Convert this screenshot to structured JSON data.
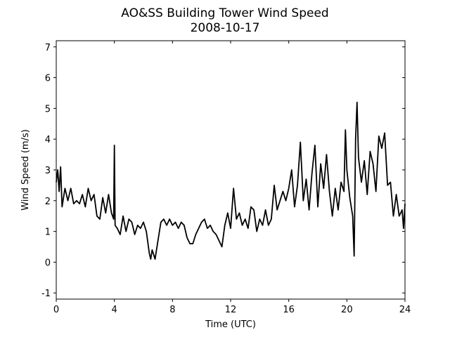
{
  "chart_data": {
    "type": "line",
    "title": "AO&SS Building Tower Wind Speed",
    "subtitle": "2008-10-17",
    "xlabel": "Time (UTC)",
    "ylabel": "Wind Speed (m/s)",
    "xlim": [
      0,
      24
    ],
    "ylim": [
      -1.2,
      7.2
    ],
    "xticks": [
      0,
      4,
      8,
      12,
      16,
      20,
      24
    ],
    "yticks": [
      -1,
      0,
      1,
      2,
      3,
      4,
      5,
      6,
      7
    ],
    "series": [
      {
        "color": "#000000",
        "x": [
          0,
          0.1,
          0.2,
          0.3,
          0.4,
          0.6,
          0.8,
          1.0,
          1.2,
          1.4,
          1.6,
          1.8,
          2.0,
          2.2,
          2.4,
          2.6,
          2.8,
          3.0,
          3.2,
          3.4,
          3.6,
          3.8,
          3.95,
          4.0,
          4.05,
          4.2,
          4.4,
          4.6,
          4.8,
          5.0,
          5.2,
          5.4,
          5.6,
          5.8,
          6.0,
          6.2,
          6.4,
          6.5,
          6.6,
          6.8,
          7.0,
          7.2,
          7.4,
          7.6,
          7.8,
          8.0,
          8.2,
          8.4,
          8.6,
          8.8,
          9.0,
          9.2,
          9.4,
          9.6,
          9.8,
          10.0,
          10.2,
          10.4,
          10.6,
          10.8,
          11.0,
          11.2,
          11.4,
          11.6,
          11.8,
          12.0,
          12.2,
          12.4,
          12.6,
          12.8,
          13.0,
          13.2,
          13.4,
          13.6,
          13.8,
          14.0,
          14.2,
          14.4,
          14.6,
          14.8,
          15.0,
          15.2,
          15.4,
          15.6,
          15.8,
          16.0,
          16.2,
          16.4,
          16.6,
          16.8,
          17.0,
          17.2,
          17.4,
          17.6,
          17.8,
          18.0,
          18.2,
          18.4,
          18.6,
          18.8,
          19.0,
          19.2,
          19.4,
          19.6,
          19.8,
          19.9,
          20.0,
          20.2,
          20.4,
          20.5,
          20.6,
          20.7,
          20.8,
          21.0,
          21.2,
          21.4,
          21.6,
          21.8,
          22.0,
          22.2,
          22.4,
          22.6,
          22.8,
          23.0,
          23.2,
          23.4,
          23.6,
          23.8,
          23.9,
          24.0
        ],
        "values": [
          2.6,
          3.0,
          2.3,
          3.1,
          1.8,
          2.4,
          2.0,
          2.4,
          1.9,
          2.0,
          1.9,
          2.2,
          1.8,
          2.4,
          2.0,
          2.2,
          1.5,
          1.4,
          2.1,
          1.6,
          2.2,
          1.6,
          1.4,
          3.8,
          1.2,
          1.1,
          0.9,
          1.5,
          1.0,
          1.4,
          1.3,
          0.9,
          1.2,
          1.1,
          1.3,
          1.0,
          0.3,
          0.1,
          0.4,
          0.1,
          0.7,
          1.3,
          1.4,
          1.2,
          1.4,
          1.2,
          1.3,
          1.1,
          1.3,
          1.2,
          0.8,
          0.6,
          0.6,
          0.9,
          1.1,
          1.3,
          1.4,
          1.1,
          1.2,
          1.0,
          0.9,
          0.7,
          0.5,
          1.2,
          1.6,
          1.1,
          2.4,
          1.4,
          1.6,
          1.2,
          1.4,
          1.1,
          1.8,
          1.7,
          1.0,
          1.4,
          1.2,
          1.7,
          1.2,
          1.4,
          2.5,
          1.7,
          2.0,
          2.3,
          2.0,
          2.4,
          3.0,
          1.8,
          2.5,
          3.9,
          2.0,
          2.7,
          1.7,
          2.9,
          3.8,
          1.8,
          3.2,
          2.4,
          3.5,
          2.3,
          1.5,
          2.4,
          1.7,
          2.6,
          2.3,
          4.3,
          3.0,
          2.1,
          1.5,
          0.2,
          4.0,
          5.2,
          3.4,
          2.6,
          3.3,
          2.2,
          3.6,
          3.2,
          2.3,
          4.1,
          3.7,
          4.2,
          2.5,
          2.6,
          1.5,
          2.2,
          1.5,
          1.7,
          1.1,
          1.9
        ]
      }
    ]
  }
}
